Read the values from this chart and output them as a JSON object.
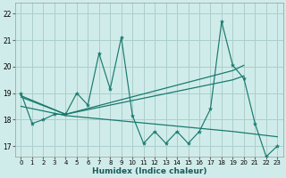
{
  "bg_color": "#d0ecea",
  "grid_color": "#aacfcc",
  "line_color": "#1a7a6e",
  "xlabel": "Humidex (Indice chaleur)",
  "xlim": [
    -0.5,
    23.5
  ],
  "ylim": [
    16.6,
    22.4
  ],
  "yticks": [
    17,
    18,
    19,
    20,
    21,
    22
  ],
  "xticks": [
    0,
    1,
    2,
    3,
    4,
    5,
    6,
    7,
    8,
    9,
    10,
    11,
    12,
    13,
    14,
    15,
    16,
    17,
    18,
    19,
    20,
    21,
    22,
    23
  ],
  "main_x": [
    0,
    1,
    2,
    3,
    4,
    5,
    6,
    7,
    8,
    9,
    10,
    11,
    12,
    13,
    14,
    15,
    16,
    17,
    18,
    19,
    20,
    21,
    22,
    23
  ],
  "main_y": [
    19.0,
    17.85,
    18.0,
    18.2,
    18.2,
    19.0,
    18.55,
    20.5,
    19.15,
    21.1,
    18.15,
    17.1,
    17.55,
    17.1,
    17.55,
    17.1,
    17.55,
    18.4,
    21.7,
    20.05,
    19.55,
    17.85,
    16.6,
    17.0
  ],
  "trend1_x": [
    0,
    4,
    19,
    20
  ],
  "trend1_y": [
    18.9,
    18.2,
    19.85,
    20.05
  ],
  "trend2_x": [
    0,
    4,
    19,
    20
  ],
  "trend2_y": [
    18.85,
    18.2,
    19.5,
    19.65
  ],
  "trend3_x": [
    0,
    4,
    19,
    23
  ],
  "trend3_y": [
    18.5,
    18.15,
    17.55,
    17.35
  ]
}
